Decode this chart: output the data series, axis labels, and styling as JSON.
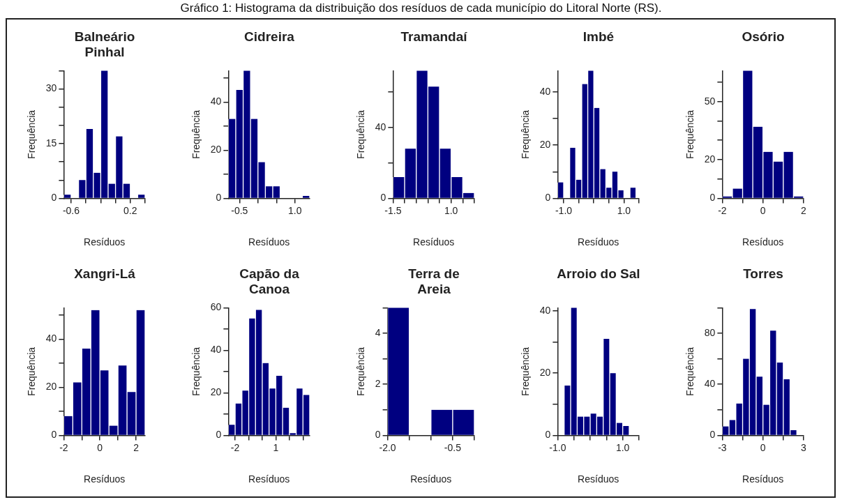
{
  "chart_data": [
    {
      "type": "histogram",
      "title": "Balneário Pinhal",
      "xlabel": "Resíduos",
      "ylabel": "Frequência",
      "color": "#000080",
      "annotations": [
        "Gráfico 1: Histograma da distribuição dos resíduos de cada município do Litoral Norte (RS)."
      ],
      "bins": [
        -0.7,
        -0.6,
        -0.5,
        -0.4,
        -0.3,
        -0.2,
        -0.1,
        0,
        0.1,
        0.2,
        0.3,
        0.4
      ],
      "values": [
        1,
        0,
        5,
        19,
        7,
        35,
        4,
        17,
        4,
        0,
        1
      ],
      "xlim": [
        -0.7,
        0.4
      ],
      "xticks": [
        -0.6,
        {
          "value": -0.4,
          "label": null
        },
        {
          "value": -0.2,
          "label": null
        },
        {
          "value": 0,
          "label": null
        },
        0.2,
        {
          "value": 0.4,
          "label": null
        }
      ],
      "ylim": [
        0,
        35
      ],
      "yticks": [
        0,
        {
          "value": 5,
          "label": null
        },
        {
          "value": 10,
          "label": null
        },
        15,
        {
          "value": 20,
          "label": null
        },
        {
          "value": 25,
          "label": null
        },
        30,
        {
          "value": 35,
          "label": null
        }
      ]
    },
    {
      "type": "histogram",
      "title": "Cidreira",
      "xlabel": "Resíduos",
      "ylabel": "Frequência",
      "color": "#000080",
      "bins": [
        -0.8,
        -0.6,
        -0.4,
        -0.2,
        0,
        0.2,
        0.4,
        0.6,
        0.8,
        1.0,
        1.2,
        1.4
      ],
      "values": [
        33,
        45,
        53,
        33,
        15,
        5,
        5,
        0,
        0,
        0,
        1
      ],
      "xlim": [
        -0.8,
        1.4
      ],
      "xticks": [
        -0.5,
        {
          "value": 0,
          "label": null
        },
        {
          "value": 0.5,
          "label": null
        },
        {
          "value": 1,
          "label": "1.0"
        }
      ],
      "ylim": [
        0,
        53
      ],
      "yticks": [
        0,
        {
          "value": 10,
          "label": null
        },
        20,
        {
          "value": 30,
          "label": null
        },
        40,
        {
          "value": 50,
          "label": null
        }
      ]
    },
    {
      "type": "histogram",
      "title": "Tramandaí",
      "xlabel": "Resíduos",
      "ylabel": "Frequência",
      "color": "#000080",
      "bins": [
        -1.5,
        -1,
        -0.5,
        0,
        0.5,
        1,
        1.5,
        2
      ],
      "values": [
        12,
        28,
        72,
        63,
        28,
        12,
        3
      ],
      "xlim": [
        -1.5,
        2
      ],
      "xticks": [
        -1.5,
        {
          "value": -1,
          "label": null
        },
        {
          "value": -0.5,
          "label": null
        },
        {
          "value": 0,
          "label": null
        },
        {
          "value": 0.5,
          "label": null
        },
        {
          "value": 1,
          "label": "1.0"
        },
        {
          "value": 1.5,
          "label": null
        },
        {
          "value": 2,
          "label": null
        }
      ],
      "ylim": [
        0,
        72
      ],
      "yticks": [
        0,
        {
          "value": 20,
          "label": null
        },
        40,
        {
          "value": 60,
          "label": null
        }
      ]
    },
    {
      "type": "histogram",
      "title": "Imbé",
      "xlabel": "Resíduos",
      "ylabel": "Frequência",
      "color": "#000080",
      "bins": [
        -1.2,
        -1.0,
        -0.8,
        -0.6,
        -0.4,
        -0.2,
        0,
        0.2,
        0.4,
        0.6,
        0.8,
        1.0,
        1.2,
        1.4
      ],
      "values": [
        6,
        0,
        19,
        7,
        43,
        48,
        34,
        11,
        4,
        10,
        3,
        0,
        4
      ],
      "xlim": [
        -1.2,
        1.5
      ],
      "xticks": [
        {
          "value": -1,
          "label": "-1.0"
        },
        {
          "value": -0.5,
          "label": null
        },
        {
          "value": 0,
          "label": null
        },
        {
          "value": 0.5,
          "label": null
        },
        {
          "value": 1,
          "label": "1.0"
        },
        {
          "value": 1.5,
          "label": null
        }
      ],
      "ylim": [
        0,
        48
      ],
      "yticks": [
        0,
        {
          "value": 10,
          "label": null
        },
        20,
        {
          "value": 30,
          "label": null
        },
        40
      ]
    },
    {
      "type": "histogram",
      "title": "Osório",
      "xlabel": "Resíduos",
      "ylabel": "Frequência",
      "color": "#000080",
      "bins": [
        -2,
        -1.5,
        -1,
        -0.5,
        0,
        0.5,
        1,
        1.5,
        2
      ],
      "values": [
        1,
        5,
        66,
        37,
        24,
        19,
        24,
        1
      ],
      "xlim": [
        -2,
        2
      ],
      "xticks": [
        -2,
        {
          "value": -1,
          "label": null
        },
        0,
        {
          "value": 1,
          "label": null
        },
        2
      ],
      "ylim": [
        0,
        66
      ],
      "yticks": [
        0,
        {
          "value": 10,
          "label": null
        },
        20,
        {
          "value": 30,
          "label": null
        },
        {
          "value": 40,
          "label": null
        },
        50,
        {
          "value": 60,
          "label": null
        }
      ]
    },
    {
      "type": "histogram",
      "title": "Xangri-Lá",
      "xlabel": "Resíduos",
      "ylabel": "Frequência",
      "color": "#000080",
      "bins": [
        -2,
        -1.5,
        -1,
        -0.5,
        0,
        0.5,
        1,
        1.5,
        2,
        2.5
      ],
      "values": [
        8,
        22,
        36,
        52,
        27,
        4,
        29,
        18,
        52
      ],
      "xlim": [
        -2,
        2.5
      ],
      "xticks": [
        -2,
        {
          "value": -1,
          "label": null
        },
        0,
        {
          "value": 1,
          "label": null
        },
        2
      ],
      "ylim": [
        0,
        53
      ],
      "yticks": [
        0,
        {
          "value": 10,
          "label": null
        },
        20,
        {
          "value": 30,
          "label": null
        },
        40,
        {
          "value": 50,
          "label": null
        }
      ]
    },
    {
      "type": "histogram",
      "title": "Capão da Canoa",
      "xlabel": "Resíduos",
      "ylabel": "Frequência",
      "color": "#000080",
      "bins": [
        -2.5,
        -2,
        -1.5,
        -1,
        -0.5,
        0,
        0.5,
        1,
        1.5,
        2,
        2.5,
        3,
        3.5
      ],
      "values": [
        5,
        15,
        21,
        55,
        59,
        34,
        22,
        28,
        13,
        1,
        22,
        19
      ],
      "xlim": [
        -2.5,
        3.5
      ],
      "xticks": [
        -2,
        {
          "value": -1,
          "label": null
        },
        {
          "value": 0,
          "label": null
        },
        1,
        {
          "value": 2,
          "label": null
        },
        {
          "value": 3,
          "label": null
        }
      ],
      "ylim": [
        0,
        60
      ],
      "yticks": [
        0,
        {
          "value": 10,
          "label": null
        },
        20,
        {
          "value": 30,
          "label": null
        },
        40,
        {
          "value": 50,
          "label": null
        },
        60
      ]
    },
    {
      "type": "histogram",
      "title": "Terra de Areia",
      "xlabel": "Resíduos",
      "ylabel": "Frequência",
      "color": "#000080",
      "bins": [
        -2,
        -1.5,
        -1,
        -0.5,
        0
      ],
      "values": [
        5,
        0,
        1,
        1
      ],
      "xlim": [
        -2,
        0
      ],
      "xticks": [
        {
          "value": -2,
          "label": "-2.0"
        },
        {
          "value": -1.5,
          "label": null
        },
        {
          "value": -1,
          "label": null
        },
        -0.5,
        {
          "value": 0,
          "label": null
        }
      ],
      "ylim": [
        0,
        5
      ],
      "yticks": [
        0,
        {
          "value": 1,
          "label": null
        },
        2,
        {
          "value": 3,
          "label": null
        },
        4,
        {
          "value": 5,
          "label": null
        }
      ]
    },
    {
      "type": "histogram",
      "title": "Arroio do Sal",
      "xlabel": "Resíduos",
      "ylabel": "Frequência",
      "color": "#000080",
      "bins": [
        -0.8,
        -0.6,
        -0.4,
        -0.2,
        0,
        0.2,
        0.4,
        0.6,
        0.8,
        1.0,
        1.2
      ],
      "values": [
        16,
        41,
        6,
        6,
        7,
        6,
        31,
        20,
        4,
        3
      ],
      "xlim": [
        -1,
        1.5
      ],
      "xticks": [
        {
          "value": -1,
          "label": "-1.0"
        },
        {
          "value": -0.5,
          "label": null
        },
        {
          "value": 0,
          "label": null
        },
        {
          "value": 0.5,
          "label": null
        },
        {
          "value": 1,
          "label": "1.0"
        },
        {
          "value": 1.5,
          "label": null
        }
      ],
      "ylim": [
        0,
        41
      ],
      "yticks": [
        0,
        {
          "value": 10,
          "label": null
        },
        20,
        {
          "value": 30,
          "label": null
        },
        40
      ]
    },
    {
      "type": "histogram",
      "title": "Torres",
      "xlabel": "Resíduos",
      "ylabel": "Frequência",
      "color": "#000080",
      "bins": [
        -3,
        -2.5,
        -2,
        -1.5,
        -1,
        -0.5,
        0,
        0.5,
        1,
        1.5,
        2,
        2.5
      ],
      "values": [
        7,
        12,
        25,
        60,
        99,
        46,
        24,
        82,
        57,
        44,
        4
      ],
      "xlim": [
        -3,
        3
      ],
      "xticks": [
        -3,
        {
          "value": -1.5,
          "label": null
        },
        0,
        {
          "value": 1.5,
          "label": null
        },
        3
      ],
      "ylim": [
        0,
        100
      ],
      "yticks": [
        0,
        {
          "value": 20,
          "label": null
        },
        40,
        {
          "value": 60,
          "label": null
        },
        80,
        {
          "value": 100,
          "label": null
        }
      ]
    }
  ]
}
